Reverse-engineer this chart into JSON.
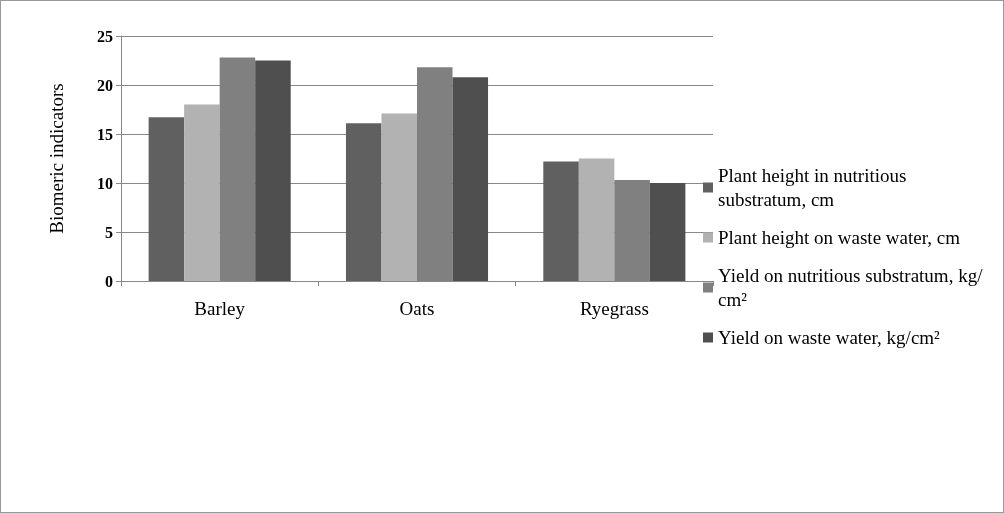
{
  "chart_data": {
    "type": "bar",
    "ylabel": "Biomeric indicators",
    "categories": [
      "Barley",
      "Oats",
      "Ryegrass"
    ],
    "series": [
      {
        "name": "Plant height in nutritious substratum, cm",
        "color": "#606060",
        "values": [
          16.7,
          16.1,
          12.2
        ]
      },
      {
        "name": "Plant height on waste water, cm",
        "color": "#b2b2b2",
        "values": [
          18.0,
          17.1,
          12.5
        ]
      },
      {
        "name": "Yield on nutritious substratum, kg/cm²",
        "color": "#808080",
        "values": [
          22.8,
          21.8,
          10.3
        ]
      },
      {
        "name": "Yield on waste water, kg/cm²",
        "color": "#4f4f4f",
        "values": [
          22.5,
          20.8,
          10.0
        ]
      }
    ],
    "ylim": [
      0,
      25
    ],
    "yticks": [
      0,
      5,
      10,
      15,
      20,
      25
    ],
    "grid": "y",
    "legend": "right"
  }
}
